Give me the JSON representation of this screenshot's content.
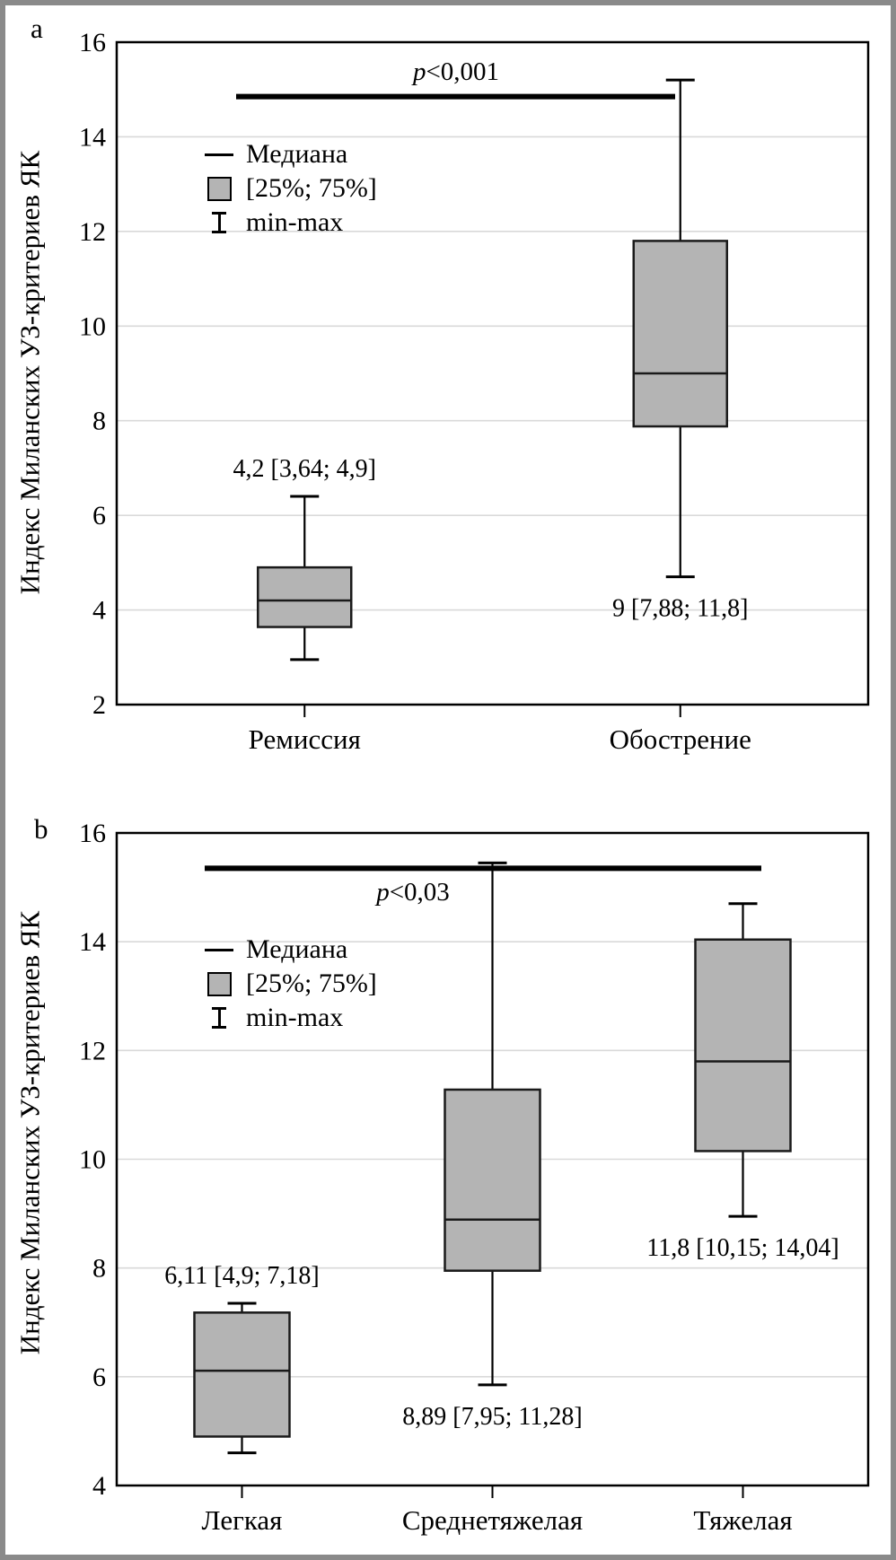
{
  "figure": {
    "border_color": "#8a8a8a",
    "background": "#ffffff"
  },
  "colors": {
    "box_fill": "#b4b4b4",
    "box_stroke": "#1a1a1a",
    "gridline": "#d9d9d9",
    "axis": "#000000",
    "significance_bar": "#000000"
  },
  "chart_data": [
    {
      "type": "boxplot",
      "panel": "a",
      "ylabel": "Индекс Миланских УЗ-критериев ЯК",
      "ylim": [
        2,
        16
      ],
      "ytick_step": 2,
      "grid": "horizontal",
      "yticks": [
        "16",
        "14",
        "12",
        "10",
        "8",
        "6",
        "4",
        "2"
      ],
      "categories": [
        "Ремиссия",
        "Обострение"
      ],
      "boxes": [
        {
          "category": "Ремиссия",
          "min": 2.95,
          "q1": 3.64,
          "median": 4.2,
          "q3": 4.9,
          "max": 6.4,
          "label": "4,2 [3,64; 4,9]",
          "label_side": "above"
        },
        {
          "category": "Обострение",
          "min": 4.7,
          "q1": 7.88,
          "median": 9,
          "q3": 11.8,
          "max": 15.2,
          "label": "9 [7,88; 11,8]",
          "label_side": "below"
        }
      ],
      "significance": {
        "prefix": "p",
        "text": "<0,001",
        "bar_y": 14.85,
        "label_side": "above"
      },
      "legend_items": [
        "Медиана",
        "[25%; 75%]",
        "min-max"
      ]
    },
    {
      "type": "boxplot",
      "panel": "b",
      "ylabel": "Индекс Миланских УЗ-критериев ЯК",
      "ylim": [
        4,
        16
      ],
      "ytick_step": 2,
      "grid": "horizontal",
      "yticks": [
        "16",
        "14",
        "12",
        "10",
        "8",
        "6",
        "4"
      ],
      "categories": [
        "Легкая",
        "Среднетяжелая",
        "Тяжелая"
      ],
      "boxes": [
        {
          "category": "Легкая",
          "min": 4.6,
          "q1": 4.9,
          "median": 6.11,
          "q3": 7.18,
          "max": 7.35,
          "label": "6,11 [4,9; 7,18]",
          "label_side": "above"
        },
        {
          "category": "Среднетяжелая",
          "min": 5.85,
          "q1": 7.95,
          "median": 8.89,
          "q3": 11.28,
          "max": 15.45,
          "label": "8,89 [7,95; 11,28]",
          "label_side": "below"
        },
        {
          "category": "Тяжелая",
          "min": 8.95,
          "q1": 10.15,
          "median": 11.8,
          "q3": 14.04,
          "max": 14.7,
          "label": "11,8 [10,15; 14,04]",
          "label_side": "below"
        }
      ],
      "significance": {
        "prefix": "p",
        "text": "<0,03",
        "bar_y": 15.35,
        "label_side": "below"
      },
      "legend_items": [
        "Медиана",
        "[25%; 75%]",
        "min-max"
      ]
    }
  ]
}
